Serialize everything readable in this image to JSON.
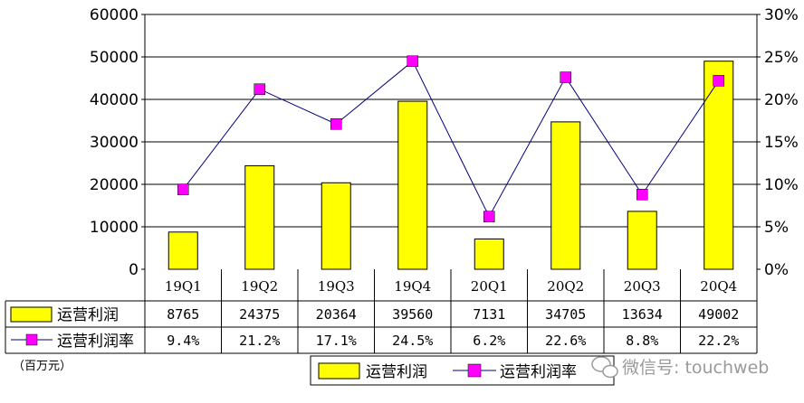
{
  "chart_data": {
    "type": "bar",
    "categories": [
      "19Q1",
      "19Q2",
      "19Q3",
      "19Q4",
      "20Q1",
      "20Q2",
      "20Q3",
      "20Q4"
    ],
    "series": [
      {
        "name": "运营利润",
        "type": "bar",
        "axis": "left",
        "color": "#ffff00",
        "values": [
          8765,
          24375,
          20364,
          39560,
          7131,
          34705,
          13634,
          49002
        ],
        "labels": [
          "8765",
          "24375",
          "20364",
          "39560",
          "7131",
          "34705",
          "13634",
          "49002"
        ]
      },
      {
        "name": "运营利润率",
        "type": "line",
        "axis": "right",
        "color": "#000080",
        "marker_color": "#ff00ff",
        "values": [
          9.4,
          21.2,
          17.1,
          24.5,
          6.2,
          22.6,
          8.8,
          22.2
        ],
        "labels": [
          "9.4%",
          "21.2%",
          "17.1%",
          "24.5%",
          "6.2%",
          "22.6%",
          "8.8%",
          "22.2%"
        ]
      }
    ],
    "y_left": {
      "ticks": [
        "0",
        "10000",
        "20000",
        "30000",
        "40000",
        "50000",
        "60000"
      ],
      "lim": [
        0,
        60000
      ]
    },
    "y_right": {
      "ticks": [
        "0%",
        "5%",
        "10%",
        "15%",
        "20%",
        "25%",
        "30%"
      ],
      "lim": [
        0,
        30
      ]
    },
    "grid": true,
    "data_table": true,
    "unit_note": "（百万元）",
    "legend_position": "bottom",
    "watermark": "微信号: touchweb"
  }
}
